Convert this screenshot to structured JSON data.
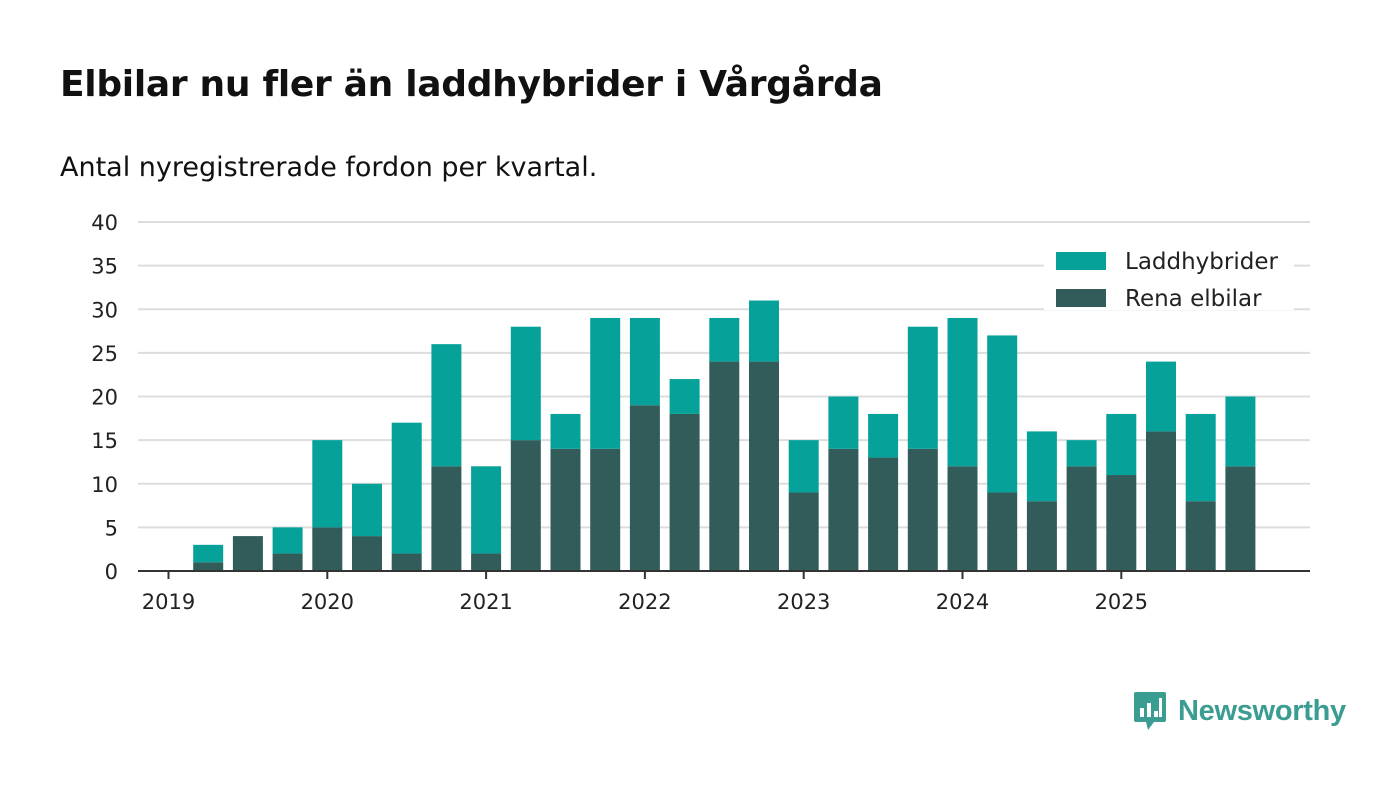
{
  "header": {
    "title": "Elbilar nu fler än laddhybrider i Vårgårda",
    "subtitle": "Antal nyregistrerade fordon per kvartal."
  },
  "brand": {
    "name": "Newsworthy",
    "color": "#3b9c92"
  },
  "colors": {
    "laddhybrider": "#06a299",
    "elbilar": "#315c5a",
    "grid": "#dddddd",
    "axis": "#333333"
  },
  "chart_data": {
    "type": "bar",
    "stacked": true,
    "title": "Elbilar nu fler än laddhybrider i Vårgårda",
    "subtitle": "Antal nyregistrerade fordon per kvartal.",
    "xlabel": "",
    "ylabel": "",
    "ylim": [
      0,
      40
    ],
    "yticks": [
      0,
      5,
      10,
      15,
      20,
      25,
      30,
      35,
      40
    ],
    "xtick_labels": [
      "2019",
      "2020",
      "2021",
      "2022",
      "2023",
      "2024",
      "2025"
    ],
    "categories": [
      "2019 Q1",
      "2019 Q2",
      "2019 Q3",
      "2019 Q4",
      "2020 Q1",
      "2020 Q2",
      "2020 Q3",
      "2020 Q4",
      "2021 Q1",
      "2021 Q2",
      "2021 Q3",
      "2021 Q4",
      "2022 Q1",
      "2022 Q2",
      "2022 Q3",
      "2022 Q4",
      "2023 Q1",
      "2023 Q2",
      "2023 Q3",
      "2023 Q4",
      "2024 Q1",
      "2024 Q2",
      "2024 Q3",
      "2024 Q4",
      "2025 Q1",
      "2025 Q2",
      "2025 Q3",
      "2025 Q4"
    ],
    "series": [
      {
        "name": "Rena elbilar",
        "values": [
          0,
          1,
          4,
          2,
          5,
          4,
          2,
          12,
          2,
          15,
          14,
          14,
          19,
          18,
          24,
          24,
          9,
          14,
          13,
          14,
          12,
          9,
          8,
          12,
          11,
          16,
          8,
          12
        ]
      },
      {
        "name": "Laddhybrider",
        "values": [
          0,
          2,
          0,
          3,
          10,
          6,
          15,
          14,
          10,
          13,
          4,
          15,
          10,
          4,
          5,
          7,
          6,
          6,
          5,
          14,
          17,
          18,
          8,
          3,
          7,
          8,
          10,
          8
        ]
      }
    ],
    "legend": [
      "Laddhybrider",
      "Rena elbilar"
    ],
    "legend_position": "top-right",
    "grid": true
  }
}
